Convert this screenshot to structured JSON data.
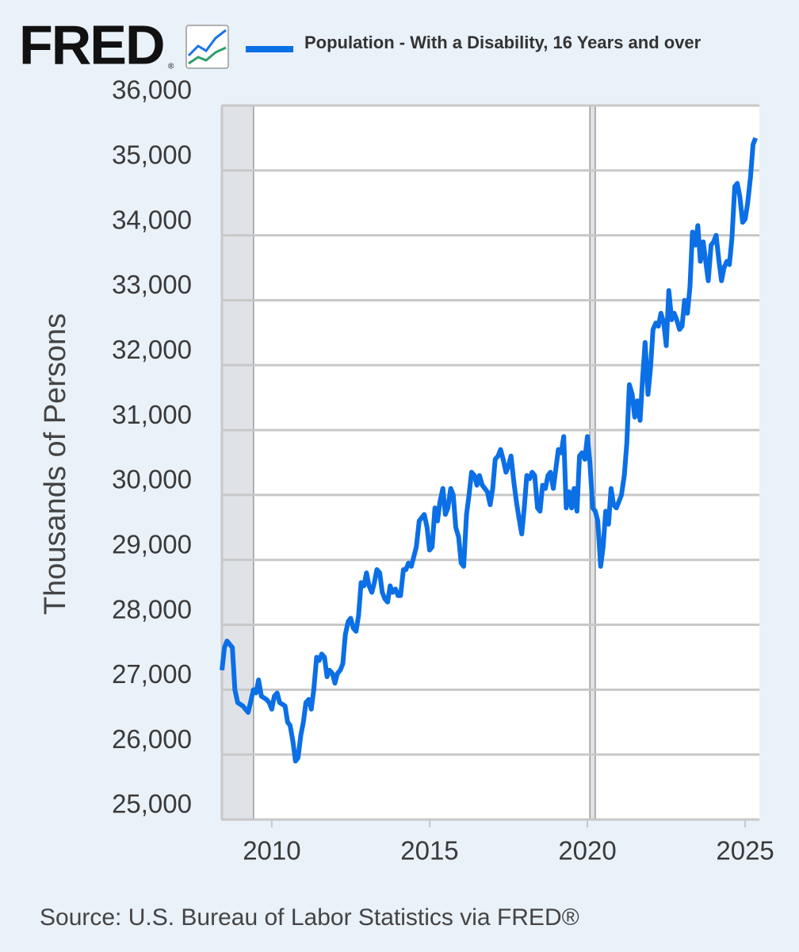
{
  "logo": "FRED",
  "logo_mark": "®",
  "chart_data": {
    "type": "line",
    "legend": "Population - With a Disability, 16 Years and over",
    "y_label": "Thousands of Persons",
    "source": "Source: U.S. Bureau of Labor Statistics via FRED®",
    "xlim": [
      2008.42,
      2025.45
    ],
    "ylim": [
      25000,
      36000
    ],
    "xticks": [
      2010,
      2015,
      2020,
      2025
    ],
    "yticks": [
      {
        "value": 25000,
        "label": "25,000"
      },
      {
        "value": 26000,
        "label": "26,000"
      },
      {
        "value": 27000,
        "label": "27,000"
      },
      {
        "value": 28000,
        "label": "28,000"
      },
      {
        "value": 29000,
        "label": "29,000"
      },
      {
        "value": 30000,
        "label": "30,000"
      },
      {
        "value": 31000,
        "label": "31,000"
      },
      {
        "value": 32000,
        "label": "32,000"
      },
      {
        "value": 33000,
        "label": "33,000"
      },
      {
        "value": 34000,
        "label": "34,000"
      },
      {
        "value": 35000,
        "label": "35,000"
      },
      {
        "value": 36000,
        "label": "36,000"
      }
    ],
    "grid": true,
    "shaded_periods": [
      [
        2008.42,
        2009.42
      ],
      [
        2020.08,
        2020.25
      ]
    ],
    "x": [
      2008.42,
      2008.5,
      2008.58,
      2008.75,
      2008.83,
      2008.92,
      2009.08,
      2009.25,
      2009.42,
      2009.5,
      2009.58,
      2009.67,
      2009.83,
      2009.92,
      2010.0,
      2010.08,
      2010.17,
      2010.25,
      2010.42,
      2010.5,
      2010.58,
      2010.67,
      2010.75,
      2010.83,
      2010.92,
      2011.0,
      2011.08,
      2011.17,
      2011.25,
      2011.33,
      2011.42,
      2011.5,
      2011.58,
      2011.67,
      2011.75,
      2011.83,
      2011.92,
      2012.0,
      2012.08,
      2012.17,
      2012.25,
      2012.33,
      2012.42,
      2012.5,
      2012.58,
      2012.67,
      2012.75,
      2012.83,
      2012.92,
      2013.0,
      2013.08,
      2013.17,
      2013.25,
      2013.33,
      2013.42,
      2013.5,
      2013.58,
      2013.67,
      2013.75,
      2013.83,
      2013.92,
      2014.0,
      2014.08,
      2014.17,
      2014.25,
      2014.33,
      2014.42,
      2014.5,
      2014.58,
      2014.67,
      2014.75,
      2014.83,
      2014.92,
      2015.0,
      2015.08,
      2015.17,
      2015.25,
      2015.33,
      2015.42,
      2015.5,
      2015.58,
      2015.67,
      2015.75,
      2015.83,
      2015.92,
      2016.0,
      2016.08,
      2016.17,
      2016.25,
      2016.33,
      2016.42,
      2016.5,
      2016.58,
      2016.67,
      2016.75,
      2016.83,
      2016.92,
      2017.0,
      2017.08,
      2017.17,
      2017.25,
      2017.33,
      2017.42,
      2017.5,
      2017.58,
      2017.67,
      2017.75,
      2017.83,
      2017.92,
      2018.0,
      2018.08,
      2018.17,
      2018.25,
      2018.33,
      2018.42,
      2018.5,
      2018.58,
      2018.67,
      2018.75,
      2018.83,
      2018.92,
      2019.0,
      2019.08,
      2019.17,
      2019.25,
      2019.33,
      2019.42,
      2019.5,
      2019.58,
      2019.67,
      2019.75,
      2019.83,
      2019.92,
      2020.0,
      2020.08,
      2020.17,
      2020.25,
      2020.33,
      2020.42,
      2020.5,
      2020.58,
      2020.67,
      2020.75,
      2020.83,
      2020.92,
      2021.0,
      2021.08,
      2021.17,
      2021.25,
      2021.33,
      2021.42,
      2021.5,
      2021.58,
      2021.67,
      2021.75,
      2021.83,
      2021.92,
      2022.0,
      2022.08,
      2022.17,
      2022.25,
      2022.33,
      2022.42,
      2022.5,
      2022.58,
      2022.67,
      2022.75,
      2022.83,
      2022.92,
      2023.0,
      2023.08,
      2023.17,
      2023.25,
      2023.33,
      2023.42,
      2023.5,
      2023.58,
      2023.67,
      2023.75,
      2023.83,
      2023.92,
      2024.0,
      2024.08,
      2024.17,
      2024.25,
      2024.33,
      2024.42,
      2024.5,
      2024.58,
      2024.67,
      2024.75,
      2024.83,
      2024.92,
      2025.0,
      2025.08,
      2025.17,
      2025.25,
      2025.33
    ],
    "series": [
      {
        "name": "Population - With a Disability, 16 Years and over",
        "color": "#0b6fe6",
        "values": [
          27300,
          27650,
          27750,
          27650,
          27000,
          26800,
          26750,
          26650,
          27000,
          26950,
          27150,
          26900,
          26850,
          26800,
          26700,
          26900,
          26950,
          26800,
          26750,
          26500,
          26450,
          26200,
          25900,
          25950,
          26300,
          26500,
          26800,
          26850,
          26700,
          27000,
          27500,
          27450,
          27550,
          27500,
          27200,
          27300,
          27250,
          27100,
          27250,
          27300,
          27400,
          27850,
          28050,
          28100,
          27950,
          27900,
          28150,
          28650,
          28600,
          28800,
          28600,
          28500,
          28650,
          28850,
          28800,
          28500,
          28400,
          28350,
          28600,
          28500,
          28550,
          28450,
          28450,
          28850,
          28850,
          28950,
          28900,
          29050,
          29200,
          29600,
          29650,
          29700,
          29500,
          29150,
          29200,
          29800,
          29600,
          29900,
          30100,
          29700,
          29800,
          30100,
          30000,
          29500,
          29350,
          28950,
          28900,
          29700,
          30000,
          30350,
          30300,
          30150,
          30300,
          30150,
          30100,
          30050,
          29850,
          30100,
          30550,
          30600,
          30700,
          30550,
          30350,
          30450,
          30600,
          30200,
          29900,
          29650,
          29400,
          29800,
          30300,
          30250,
          30350,
          30300,
          29800,
          29750,
          30150,
          30100,
          30300,
          30350,
          30100,
          30400,
          30700,
          30650,
          30900,
          29800,
          30050,
          29800,
          30100,
          29750,
          30600,
          30650,
          30550,
          30900,
          30500,
          29800,
          29750,
          29600,
          28900,
          29200,
          29750,
          29550,
          30100,
          29850,
          29800,
          29900,
          30000,
          30300,
          30800,
          31700,
          31550,
          31200,
          31450,
          31150,
          31800,
          32350,
          31550,
          31950,
          32550,
          32650,
          32600,
          32800,
          32650,
          32300,
          33150,
          32700,
          32800,
          32700,
          32550,
          32600,
          33000,
          32800,
          33200,
          34050,
          33850,
          34150,
          33600,
          33900,
          33600,
          33300,
          33850,
          33900,
          34000,
          33600,
          33300,
          33500,
          33600,
          33550,
          33950,
          34750,
          34800,
          34600,
          34200,
          34250,
          34500,
          34900,
          35400,
          35500
        ]
      }
    ]
  }
}
